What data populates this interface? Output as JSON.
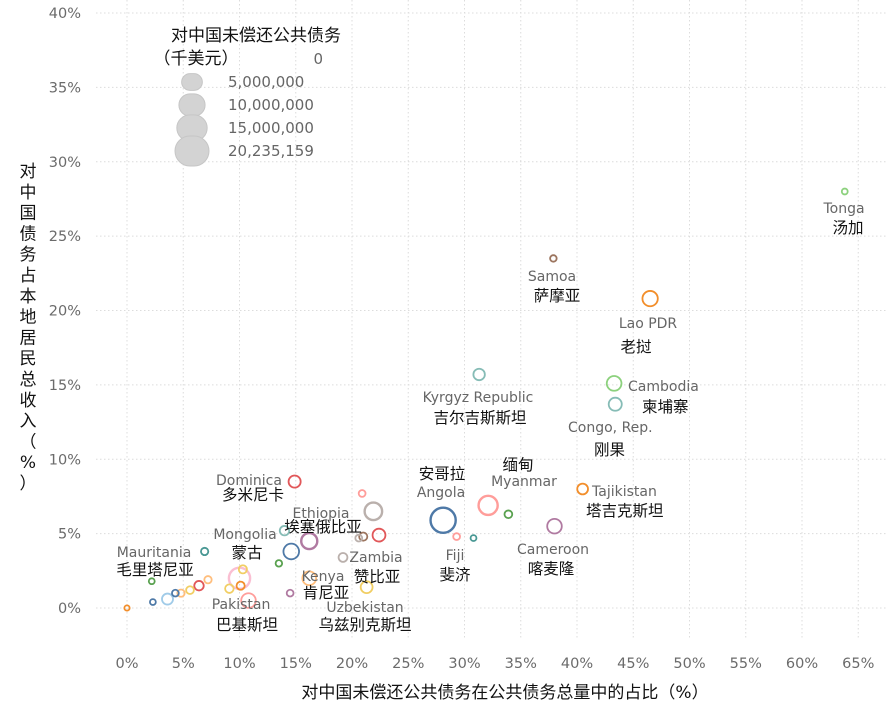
{
  "chart_data": {
    "type": "scatter",
    "xlabel": "对中国未偿还公共债务在公共债务总量中的占比（%）",
    "ylabel": "对中国债务占本地居民总收入（%）",
    "xlim": [
      -3,
      67
    ],
    "ylim": [
      -1,
      40
    ],
    "x_ticks": [
      "0%",
      "5%",
      "10%",
      "15%",
      "20%",
      "25%",
      "30%",
      "35%",
      "40%",
      "45%",
      "50%",
      "55%",
      "60%",
      "65%"
    ],
    "y_ticks": [
      "0%",
      "5%",
      "10%",
      "15%",
      "20%",
      "25%",
      "30%",
      "35%",
      "40%"
    ],
    "grid": true,
    "size_legend": {
      "title_line1": "对中国未偿还公共债务",
      "title_line2": "（千美元）",
      "entries": [
        {
          "label": "0",
          "value": 0
        },
        {
          "label": "5,000,000",
          "value": 5000000
        },
        {
          "label": "10,000,000",
          "value": 10000000
        },
        {
          "label": "15,000,000",
          "value": 15000000
        },
        {
          "label": "20,235,159",
          "value": 20235159
        }
      ],
      "placement": "top-left"
    },
    "points": [
      {
        "x": 63.8,
        "y": 28,
        "size": 150000,
        "color": "#8cd17d",
        "en": "Tonga",
        "zh": "汤加"
      },
      {
        "x": 37.9,
        "y": 23.5,
        "size": 250000,
        "color": "#9c755f",
        "en": "Samoa",
        "zh": "萨摩亚"
      },
      {
        "x": 46.5,
        "y": 20.8,
        "size": 4000000,
        "color": "#f28e2b",
        "en": "Lao PDR",
        "zh": "老挝"
      },
      {
        "x": 31.3,
        "y": 15.7,
        "size": 1800000,
        "color": "#86bcb6",
        "en": "Kyrgyz Republic",
        "zh": "吉尔吉斯斯坦"
      },
      {
        "x": 43.3,
        "y": 15.1,
        "size": 3600000,
        "color": "#8cd17d",
        "en": "Cambodia",
        "zh": "柬埔寨"
      },
      {
        "x": 43.4,
        "y": 13.7,
        "size": 2600000,
        "color": "#86bcb6",
        "en": "Congo, Rep.",
        "zh": "刚果"
      },
      {
        "x": 14.9,
        "y": 8.5,
        "size": 2100000,
        "color": "#e15759",
        "en": "Dominica",
        "zh": "多米尼卡"
      },
      {
        "x": 40.5,
        "y": 8,
        "size": 1500000,
        "color": "#f28e2b",
        "en": "Tajikistan",
        "zh": "塔吉克斯坦"
      },
      {
        "x": 32.1,
        "y": 6.9,
        "size": 7000000,
        "color": "#ff9d9a",
        "en": "Myanmar",
        "zh": "缅甸"
      },
      {
        "x": 33.9,
        "y": 6.3,
        "size": 500000,
        "color": "#59a14f",
        "en": "",
        "zh": ""
      },
      {
        "x": 28.1,
        "y": 5.9,
        "size": 13500000,
        "color": "#4e79a7",
        "en": "Angola",
        "zh": "安哥拉"
      },
      {
        "x": 21.9,
        "y": 6.5,
        "size": 5600000,
        "color": "#bab0ac",
        "en": "",
        "zh": ""
      },
      {
        "x": 20.9,
        "y": 7.7,
        "size": 300000,
        "color": "#ff9d9a",
        "en": "",
        "zh": ""
      },
      {
        "x": 38.0,
        "y": 5.5,
        "size": 3500000,
        "color": "#b07aa1",
        "en": "Cameroon",
        "zh": "喀麦隆"
      },
      {
        "x": 16.2,
        "y": 4.5,
        "size": 4500000,
        "color": "#b07aa1",
        "en": "Ethiopia",
        "zh": "埃塞俄比亚"
      },
      {
        "x": 14.6,
        "y": 3.8,
        "size": 4200000,
        "color": "#4e79a7",
        "en": "Mongolia",
        "zh": "蒙古"
      },
      {
        "x": 22.4,
        "y": 4.9,
        "size": 2500000,
        "color": "#e15759",
        "en": "",
        "zh": ""
      },
      {
        "x": 21.0,
        "y": 4.8,
        "size": 600000,
        "color": "#9c755f",
        "en": "",
        "zh": ""
      },
      {
        "x": 20.6,
        "y": 4.7,
        "size": 300000,
        "color": "#bab0ac",
        "en": "",
        "zh": ""
      },
      {
        "x": 14.0,
        "y": 5.2,
        "size": 1000000,
        "color": "#86bcb6",
        "en": "",
        "zh": ""
      },
      {
        "x": 29.3,
        "y": 4.8,
        "size": 300000,
        "color": "#ff9d9a",
        "en": "Fiji",
        "zh": "斐济"
      },
      {
        "x": 30.8,
        "y": 4.7,
        "size": 150000,
        "color": "#499894",
        "en": "",
        "zh": ""
      },
      {
        "x": 19.2,
        "y": 3.4,
        "size": 800000,
        "color": "#bab0ac",
        "en": "Zambia",
        "zh": "赞比亚"
      },
      {
        "x": 21.3,
        "y": 1.4,
        "size": 2000000,
        "color": "#f1ce63",
        "en": "Uzbekistan",
        "zh": "乌兹别克斯坦"
      },
      {
        "x": 16.2,
        "y": 2.0,
        "size": 3000000,
        "color": "#ffbe7d",
        "en": "Kenya",
        "zh": "肯尼亚"
      },
      {
        "x": 14.5,
        "y": 1.0,
        "size": 300000,
        "color": "#b07aa1",
        "en": "",
        "zh": ""
      },
      {
        "x": 13.5,
        "y": 3.0,
        "size": 250000,
        "color": "#59a14f",
        "en": "",
        "zh": ""
      },
      {
        "x": 10.0,
        "y": 2.0,
        "size": 9000000,
        "color": "#fabfd2",
        "en": "Pakistan",
        "zh": "巴基斯坦"
      },
      {
        "x": 10.8,
        "y": 0.5,
        "size": 3500000,
        "color": "#ff9d9a",
        "en": "",
        "zh": ""
      },
      {
        "x": 10.3,
        "y": 2.6,
        "size": 600000,
        "color": "#f1ce63",
        "en": "",
        "zh": ""
      },
      {
        "x": 10.1,
        "y": 1.5,
        "size": 600000,
        "color": "#f28e2b",
        "en": "",
        "zh": ""
      },
      {
        "x": 9.1,
        "y": 1.3,
        "size": 700000,
        "color": "#f1ce63",
        "en": "",
        "zh": ""
      },
      {
        "x": 6.9,
        "y": 3.8,
        "size": 400000,
        "color": "#499894",
        "en": "Mauritania",
        "zh": "毛里塔尼亚"
      },
      {
        "x": 7.2,
        "y": 1.9,
        "size": 400000,
        "color": "#ffbe7d",
        "en": "",
        "zh": ""
      },
      {
        "x": 6.4,
        "y": 1.5,
        "size": 1000000,
        "color": "#e15759",
        "en": "",
        "zh": ""
      },
      {
        "x": 5.6,
        "y": 1.2,
        "size": 500000,
        "color": "#f1ce63",
        "en": "",
        "zh": ""
      },
      {
        "x": 4.8,
        "y": 1.0,
        "size": 400000,
        "color": "#ffbe7d",
        "en": "",
        "zh": ""
      },
      {
        "x": 3.6,
        "y": 0.6,
        "size": 1600000,
        "color": "#a0cbe8",
        "en": "",
        "zh": ""
      },
      {
        "x": 4.3,
        "y": 1.0,
        "size": 300000,
        "color": "#4e79a7",
        "en": "",
        "zh": ""
      },
      {
        "x": 2.2,
        "y": 1.8,
        "size": 150000,
        "color": "#59a14f",
        "en": "",
        "zh": ""
      },
      {
        "x": 2.3,
        "y": 0.4,
        "size": 150000,
        "color": "#4e79a7",
        "en": "",
        "zh": ""
      },
      {
        "x": 0.0,
        "y": 0.0,
        "size": 80000,
        "color": "#f28e2b",
        "en": "",
        "zh": ""
      }
    ],
    "labels": [
      {
        "en_bind": 0,
        "zh_bind": 0,
        "ex": 844,
        "ey": 213,
        "zx": 848,
        "zy": 233,
        "anchor": "middle"
      },
      {
        "en_bind": 1,
        "zh_bind": 1,
        "ex": 552,
        "ey": 281,
        "zx": 557,
        "zy": 301,
        "anchor": "middle"
      },
      {
        "en_bind": 2,
        "zh_bind": 2,
        "ex": 648,
        "ey": 328,
        "zx": 636,
        "zy": 352,
        "anchor": "middle"
      },
      {
        "en_bind": 3,
        "zh_bind": 3,
        "ex": 478,
        "ey": 402,
        "zx": 480,
        "zy": 423,
        "anchor": "middle"
      },
      {
        "en_bind": 4,
        "zh_bind": 4,
        "ex": 628,
        "ey": 391,
        "zx": 642,
        "zy": 412,
        "anchor": "start"
      },
      {
        "en_bind": 5,
        "zh_bind": 5,
        "ex": 568,
        "ey": 432,
        "zx": 594,
        "zy": 455,
        "anchor": "start"
      },
      {
        "en_bind": 6,
        "zh_bind": 6,
        "ex": 249,
        "ey": 485,
        "zx": 253,
        "zy": 500,
        "anchor": "middle"
      },
      {
        "en_bind": 7,
        "zh_bind": 7,
        "ex": 592,
        "ey": 496,
        "zx": 586,
        "zy": 516,
        "anchor": "start"
      },
      {
        "en_bind": 8,
        "zh_bind": 8,
        "ex": 524,
        "ey": 486,
        "zx": 518,
        "zy": 470,
        "anchor": "middle"
      },
      {
        "en_bind": 10,
        "zh_bind": 10,
        "ex": 441,
        "ey": 497,
        "zx": 442,
        "zy": 479,
        "anchor": "middle"
      },
      {
        "en_bind": 13,
        "zh_bind": 13,
        "ex": 553,
        "ey": 554,
        "zx": 551,
        "zy": 574,
        "anchor": "middle"
      },
      {
        "en_bind": 14,
        "zh_bind": 14,
        "ex": 321,
        "ey": 518,
        "zx": 323,
        "zy": 532,
        "anchor": "middle"
      },
      {
        "en_bind": 15,
        "zh_bind": 15,
        "ex": 245,
        "ey": 539,
        "zx": 247,
        "zy": 558,
        "anchor": "middle"
      },
      {
        "en_bind": 20,
        "zh_bind": 20,
        "ex": 455,
        "ey": 560,
        "zx": 455,
        "zy": 580,
        "anchor": "middle"
      },
      {
        "en_bind": 22,
        "zh_bind": 22,
        "ex": 376,
        "ey": 562,
        "zx": 377,
        "zy": 582,
        "anchor": "middle"
      },
      {
        "en_bind": 23,
        "zh_bind": 23,
        "ex": 365,
        "ey": 612,
        "zx": 365,
        "zy": 630,
        "anchor": "middle"
      },
      {
        "en_bind": 24,
        "zh_bind": 24,
        "ex": 323,
        "ey": 581,
        "zx": 326,
        "zy": 598,
        "anchor": "middle"
      },
      {
        "en_bind": 27,
        "zh_bind": 27,
        "ex": 241,
        "ey": 609,
        "zx": 247,
        "zy": 630,
        "anchor": "middle"
      },
      {
        "en_bind": 32,
        "zh_bind": 32,
        "ex": 154,
        "ey": 557,
        "zx": 155,
        "zy": 575,
        "anchor": "middle"
      }
    ]
  }
}
